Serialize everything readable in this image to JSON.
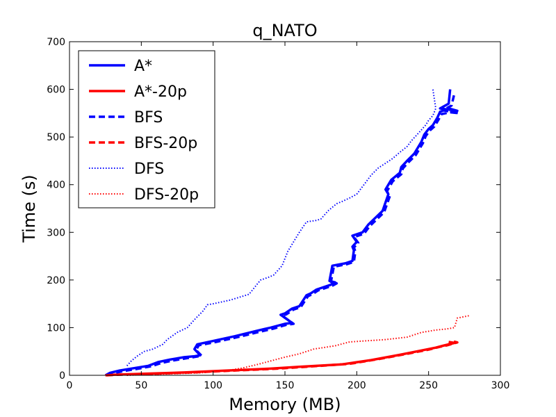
{
  "chart_data": {
    "type": "line",
    "title": "q_NATO",
    "xlabel": "Memory (MB)",
    "ylabel": "Time (s)",
    "xlim": [
      0,
      300
    ],
    "ylim": [
      0,
      700
    ],
    "xticks": [
      0,
      50,
      100,
      150,
      200,
      250,
      300
    ],
    "yticks": [
      0,
      100,
      200,
      300,
      400,
      500,
      600,
      700
    ],
    "grid": false,
    "legend_position": "top-left",
    "series": [
      {
        "name": "A*",
        "color": "#0000ff",
        "style": "solid",
        "x": [
          25,
          28,
          35,
          45,
          55,
          62,
          70,
          80,
          87,
          91,
          87,
          89,
          100,
          115,
          130,
          140,
          150,
          155,
          147,
          150,
          155,
          160,
          165,
          168,
          172,
          182,
          185,
          181,
          183,
          192,
          197,
          198,
          197,
          200,
          197,
          204,
          208,
          218,
          222,
          220,
          224,
          230,
          231,
          235,
          240,
          243,
          245,
          247,
          250,
          253,
          256,
          258,
          264,
          270,
          258,
          264,
          265
        ],
        "y": [
          0,
          5,
          10,
          15,
          20,
          28,
          33,
          38,
          40,
          42,
          55,
          65,
          72,
          82,
          93,
          100,
          108,
          110,
          127,
          130,
          140,
          145,
          168,
          172,
          180,
          190,
          195,
          198,
          230,
          235,
          240,
          262,
          270,
          280,
          293,
          300,
          316,
          345,
          380,
          390,
          410,
          425,
          437,
          450,
          465,
          480,
          490,
          505,
          517,
          525,
          540,
          553,
          560,
          555,
          560,
          570,
          600
        ]
      },
      {
        "name": "A*-20p",
        "color": "#ff0000",
        "style": "solid",
        "x": [
          25,
          30,
          50,
          80,
          110,
          140,
          160,
          190,
          210,
          230,
          245,
          255,
          260,
          268,
          264
        ],
        "y": [
          0,
          1,
          3,
          6,
          10,
          14,
          18,
          23,
          32,
          43,
          52,
          58,
          62,
          68,
          70
        ]
      },
      {
        "name": "BFS",
        "color": "#0000ff",
        "style": "dashed",
        "x": [
          26,
          30,
          38,
          48,
          57,
          64,
          72,
          82,
          88,
          92,
          88,
          90,
          102,
          117,
          132,
          142,
          151,
          156,
          148,
          151,
          156,
          161,
          166,
          169,
          173,
          183,
          186,
          182,
          184,
          193,
          198,
          199,
          198,
          201,
          198,
          205,
          209,
          219,
          223,
          221,
          225,
          231,
          232,
          236,
          241,
          244,
          246,
          248,
          251,
          254,
          257,
          259,
          265,
          271,
          260,
          266,
          268
        ],
        "y": [
          0,
          4,
          9,
          14,
          19,
          26,
          31,
          36,
          39,
          41,
          53,
          63,
          70,
          80,
          91,
          98,
          106,
          108,
          125,
          128,
          138,
          143,
          166,
          170,
          178,
          188,
          193,
          196,
          228,
          233,
          238,
          260,
          268,
          278,
          290,
          297,
          313,
          342,
          376,
          386,
          407,
          422,
          434,
          447,
          462,
          477,
          487,
          502,
          514,
          522,
          537,
          548,
          552,
          550,
          556,
          566,
          592
        ]
      },
      {
        "name": "BFS-20p",
        "color": "#ff0000",
        "style": "dashed",
        "x": [
          26,
          32,
          55,
          85,
          115,
          145,
          165,
          195,
          215,
          235,
          250,
          258,
          263,
          270,
          266
        ],
        "y": [
          0,
          1,
          3,
          6,
          10,
          14,
          18,
          24,
          34,
          45,
          54,
          60,
          63,
          69,
          72
        ]
      },
      {
        "name": "DFS",
        "color": "#0000ff",
        "style": "dotted",
        "x": [
          40,
          43,
          47,
          52,
          58,
          65,
          68,
          75,
          82,
          88,
          93,
          96,
          100,
          112,
          125,
          133,
          138,
          142,
          148,
          150,
          152,
          155,
          160,
          165,
          172,
          175,
          180,
          186,
          190,
          195,
          200,
          205,
          210,
          215,
          220,
          225,
          230,
          235,
          238,
          242,
          245,
          248,
          250,
          253,
          255,
          254,
          253
        ],
        "y": [
          20,
          30,
          40,
          50,
          55,
          65,
          75,
          90,
          100,
          120,
          135,
          148,
          150,
          158,
          170,
          200,
          205,
          210,
          230,
          245,
          260,
          275,
          300,
          322,
          325,
          328,
          345,
          360,
          365,
          372,
          380,
          400,
          420,
          435,
          445,
          455,
          468,
          480,
          492,
          505,
          515,
          525,
          535,
          545,
          560,
          580,
          600
        ]
      },
      {
        "name": "DFS-20p",
        "color": "#ff0000",
        "style": "dotted",
        "x": [
          40,
          60,
          90,
          110,
          120,
          130,
          140,
          150,
          160,
          170,
          185,
          195,
          205,
          220,
          235,
          245,
          255,
          262,
          268,
          270,
          278
        ],
        "y": [
          0,
          2,
          5,
          10,
          15,
          22,
          30,
          38,
          45,
          55,
          62,
          70,
          72,
          75,
          80,
          90,
          95,
          97,
          100,
          120,
          125
        ]
      }
    ]
  }
}
